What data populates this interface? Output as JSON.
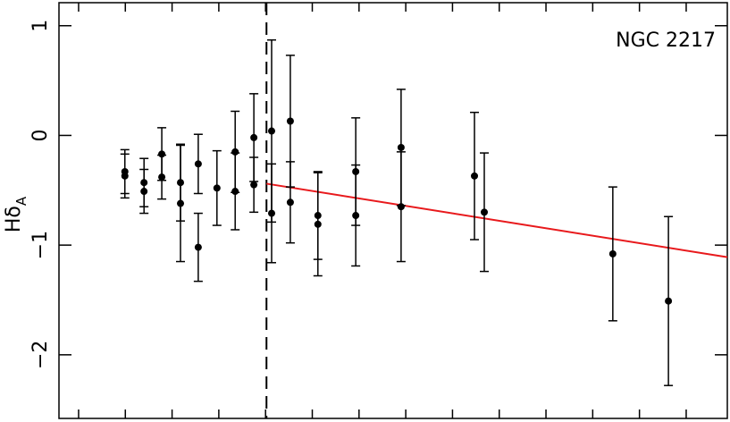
{
  "chart_data": {
    "type": "scatter",
    "annotation": "NGC 2217",
    "ylabel": "Hδ",
    "ylabel_sub": "A",
    "xlim": [
      -0.42,
      13.88
    ],
    "xticks": [
      0,
      1,
      2,
      3,
      4,
      5,
      6,
      7,
      8,
      9,
      10,
      11,
      12,
      13
    ],
    "ylim": [
      -2.58,
      1.21
    ],
    "yticks": [
      {
        "value": 1,
        "label": "1"
      },
      {
        "value": 0,
        "label": "0"
      },
      {
        "value": -1,
        "label": "−1"
      },
      {
        "value": -2,
        "label": "−2"
      }
    ],
    "vline": 4.02,
    "series": [
      {
        "color": "#000000",
        "x": [
          0.99,
          0.99,
          1.4,
          1.4,
          1.78,
          1.78,
          2.18,
          2.18,
          2.56,
          2.56,
          2.96,
          3.35,
          3.35,
          3.75,
          3.75,
          4.13,
          4.13,
          4.53,
          4.53,
          5.12,
          5.12,
          5.93,
          5.93,
          6.9,
          6.9,
          8.47,
          8.68,
          11.43,
          12.62
        ],
        "values": [
          -0.33,
          -0.37,
          -0.43,
          -0.51,
          -0.17,
          -0.38,
          -0.43,
          -0.62,
          -0.26,
          -1.02,
          -0.48,
          -0.15,
          -0.51,
          -0.02,
          -0.45,
          0.04,
          -0.71,
          0.13,
          -0.61,
          -0.73,
          -0.81,
          -0.33,
          -0.73,
          -0.11,
          -0.65,
          -0.37,
          -0.7,
          -1.08,
          -1.51
        ],
        "errors": [
          0.2,
          0.2,
          0.22,
          0.2,
          0.24,
          0.2,
          0.35,
          0.53,
          0.27,
          0.31,
          0.34,
          0.37,
          0.35,
          0.4,
          0.25,
          0.83,
          0.45,
          0.6,
          0.37,
          0.4,
          0.47,
          0.49,
          0.46,
          0.53,
          0.5,
          0.58,
          0.54,
          0.61,
          0.77
        ]
      }
    ],
    "fit": {
      "color": "#e8191c",
      "x": [
        4.02,
        13.88
      ],
      "values": [
        -0.44,
        -1.11
      ]
    }
  }
}
